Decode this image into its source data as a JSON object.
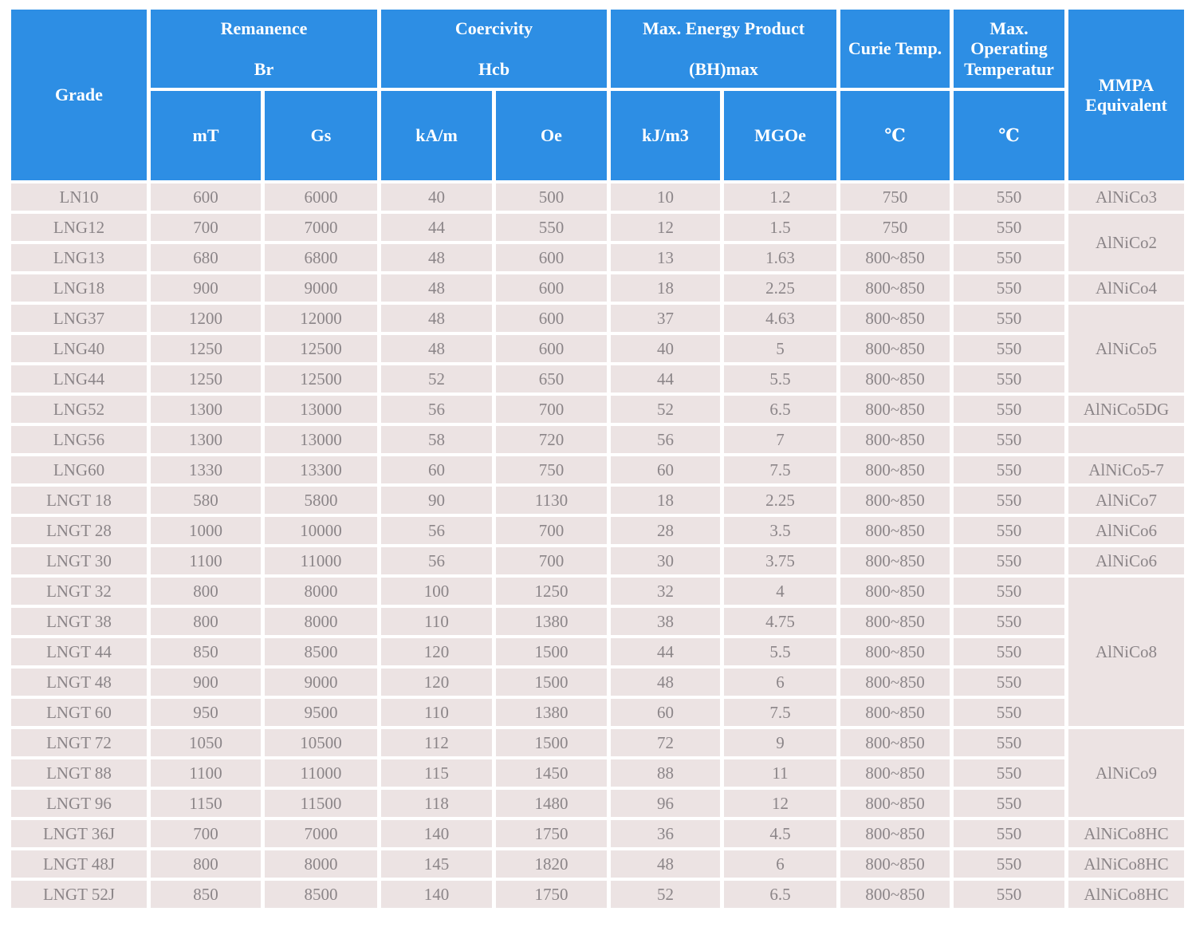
{
  "colors": {
    "header_bg": "#2D8EE4",
    "header_text": "#FFFFFF",
    "cell_bg": "#ECE3E3",
    "cell_text": "#8B8588",
    "grid": "#FFFFFF"
  },
  "chart_data": {
    "type": "table",
    "header": {
      "grade": "Grade",
      "groups": [
        {
          "title": "Remanence",
          "sub": "Br"
        },
        {
          "title": "Coercivity",
          "sub": "Hcb"
        },
        {
          "title": "Max. Energy Product",
          "sub": "(BH)max"
        }
      ],
      "curie_title": "Curie Temp.",
      "max_operating_lines": [
        "Max.",
        "Operating",
        "Temperatur"
      ],
      "mmpa_lines": [
        "MMPA",
        "Equivalent"
      ],
      "units": [
        "mT",
        "Gs",
        "kA/m",
        "Oe",
        "kJ/m3",
        "MGOe",
        "℃",
        "℃"
      ]
    },
    "rows": [
      {
        "grade": "LN10",
        "mt": "600",
        "gs": "6000",
        "kam": "40",
        "oe": "500",
        "kj": "10",
        "mgoe": "1.2",
        "curie": "750",
        "maxop": "550",
        "mmpa": {
          "label": "AlNiCo3",
          "rowspan": 1
        }
      },
      {
        "grade": "LNG12",
        "mt": "700",
        "gs": "7000",
        "kam": "44",
        "oe": "550",
        "kj": "12",
        "mgoe": "1.5",
        "curie": "750",
        "maxop": "550",
        "mmpa": {
          "label": "AlNiCo2",
          "rowspan": 2
        }
      },
      {
        "grade": "LNG13",
        "mt": "680",
        "gs": "6800",
        "kam": "48",
        "oe": "600",
        "kj": "13",
        "mgoe": "1.63",
        "curie": "800~850",
        "maxop": "550",
        "mmpa": null
      },
      {
        "grade": "LNG18",
        "mt": "900",
        "gs": "9000",
        "kam": "48",
        "oe": "600",
        "kj": "18",
        "mgoe": "2.25",
        "curie": "800~850",
        "maxop": "550",
        "mmpa": {
          "label": "AlNiCo4",
          "rowspan": 1
        }
      },
      {
        "grade": "LNG37",
        "mt": "1200",
        "gs": "12000",
        "kam": "48",
        "oe": "600",
        "kj": "37",
        "mgoe": "4.63",
        "curie": "800~850",
        "maxop": "550",
        "mmpa": {
          "label": "AlNiCo5",
          "rowspan": 3
        }
      },
      {
        "grade": "LNG40",
        "mt": "1250",
        "gs": "12500",
        "kam": "48",
        "oe": "600",
        "kj": "40",
        "mgoe": "5",
        "curie": "800~850",
        "maxop": "550",
        "mmpa": null
      },
      {
        "grade": "LNG44",
        "mt": "1250",
        "gs": "12500",
        "kam": "52",
        "oe": "650",
        "kj": "44",
        "mgoe": "5.5",
        "curie": "800~850",
        "maxop": "550",
        "mmpa": null
      },
      {
        "grade": "LNG52",
        "mt": "1300",
        "gs": "13000",
        "kam": "56",
        "oe": "700",
        "kj": "52",
        "mgoe": "6.5",
        "curie": "800~850",
        "maxop": "550",
        "mmpa": {
          "label": "AlNiCo5DG",
          "rowspan": 1
        }
      },
      {
        "grade": "LNG56",
        "mt": "1300",
        "gs": "13000",
        "kam": "58",
        "oe": "720",
        "kj": "56",
        "mgoe": "7",
        "curie": "800~850",
        "maxop": "550",
        "mmpa": {
          "label": "",
          "rowspan": 1
        }
      },
      {
        "grade": "LNG60",
        "mt": "1330",
        "gs": "13300",
        "kam": "60",
        "oe": "750",
        "kj": "60",
        "mgoe": "7.5",
        "curie": "800~850",
        "maxop": "550",
        "mmpa": {
          "label": "AlNiCo5-7",
          "rowspan": 1
        }
      },
      {
        "grade": "LNGT 18",
        "mt": "580",
        "gs": "5800",
        "kam": "90",
        "oe": "1130",
        "kj": "18",
        "mgoe": "2.25",
        "curie": "800~850",
        "maxop": "550",
        "mmpa": {
          "label": "AlNiCo7",
          "rowspan": 1
        }
      },
      {
        "grade": "LNGT 28",
        "mt": "1000",
        "gs": "10000",
        "kam": "56",
        "oe": "700",
        "kj": "28",
        "mgoe": "3.5",
        "curie": "800~850",
        "maxop": "550",
        "mmpa": {
          "label": "AlNiCo6",
          "rowspan": 1
        }
      },
      {
        "grade": "LNGT 30",
        "mt": "1100",
        "gs": "11000",
        "kam": "56",
        "oe": "700",
        "kj": "30",
        "mgoe": "3.75",
        "curie": "800~850",
        "maxop": "550",
        "mmpa": {
          "label": "AlNiCo6",
          "rowspan": 1
        }
      },
      {
        "grade": "LNGT 32",
        "mt": "800",
        "gs": "8000",
        "kam": "100",
        "oe": "1250",
        "kj": "32",
        "mgoe": "4",
        "curie": "800~850",
        "maxop": "550",
        "mmpa": {
          "label": "AlNiCo8",
          "rowspan": 5
        }
      },
      {
        "grade": "LNGT 38",
        "mt": "800",
        "gs": "8000",
        "kam": "110",
        "oe": "1380",
        "kj": "38",
        "mgoe": "4.75",
        "curie": "800~850",
        "maxop": "550",
        "mmpa": null
      },
      {
        "grade": "LNGT 44",
        "mt": "850",
        "gs": "8500",
        "kam": "120",
        "oe": "1500",
        "kj": "44",
        "mgoe": "5.5",
        "curie": "800~850",
        "maxop": "550",
        "mmpa": null
      },
      {
        "grade": "LNGT 48",
        "mt": "900",
        "gs": "9000",
        "kam": "120",
        "oe": "1500",
        "kj": "48",
        "mgoe": "6",
        "curie": "800~850",
        "maxop": "550",
        "mmpa": null
      },
      {
        "grade": "LNGT 60",
        "mt": "950",
        "gs": "9500",
        "kam": "110",
        "oe": "1380",
        "kj": "60",
        "mgoe": "7.5",
        "curie": "800~850",
        "maxop": "550",
        "mmpa": null
      },
      {
        "grade": "LNGT 72",
        "mt": "1050",
        "gs": "10500",
        "kam": "112",
        "oe": "1500",
        "kj": "72",
        "mgoe": "9",
        "curie": "800~850",
        "maxop": "550",
        "mmpa": {
          "label": "AlNiCo9",
          "rowspan": 3
        }
      },
      {
        "grade": "LNGT 88",
        "mt": "1100",
        "gs": "11000",
        "kam": "115",
        "oe": "1450",
        "kj": "88",
        "mgoe": "11",
        "curie": "800~850",
        "maxop": "550",
        "mmpa": null
      },
      {
        "grade": "LNGT 96",
        "mt": "1150",
        "gs": "11500",
        "kam": "118",
        "oe": "1480",
        "kj": "96",
        "mgoe": "12",
        "curie": "800~850",
        "maxop": "550",
        "mmpa": null
      },
      {
        "grade": "LNGT 36J",
        "mt": "700",
        "gs": "7000",
        "kam": "140",
        "oe": "1750",
        "kj": "36",
        "mgoe": "4.5",
        "curie": "800~850",
        "maxop": "550",
        "mmpa": {
          "label": "AlNiCo8HC",
          "rowspan": 1
        }
      },
      {
        "grade": "LNGT 48J",
        "mt": "800",
        "gs": "8000",
        "kam": "145",
        "oe": "1820",
        "kj": "48",
        "mgoe": "6",
        "curie": "800~850",
        "maxop": "550",
        "mmpa": {
          "label": "AlNiCo8HC",
          "rowspan": 1
        }
      },
      {
        "grade": "LNGT 52J",
        "mt": "850",
        "gs": "8500",
        "kam": "140",
        "oe": "1750",
        "kj": "52",
        "mgoe": "6.5",
        "curie": "800~850",
        "maxop": "550",
        "mmpa": {
          "label": "AlNiCo8HC",
          "rowspan": 1
        }
      }
    ]
  }
}
